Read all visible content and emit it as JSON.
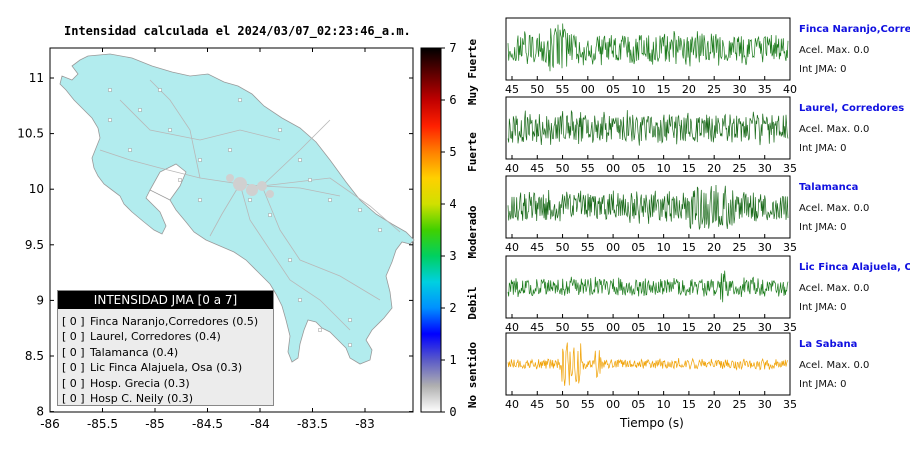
{
  "map": {
    "title": "Intensidad calculada el 2024/03/07_02:23:46_a.m.",
    "x_ticks": [
      "-86",
      "-85.5",
      "-85",
      "-84.5",
      "-84",
      "-83.5",
      "-83"
    ],
    "y_ticks": [
      "11",
      "10.5",
      "10",
      "9.5",
      "9",
      "8.5",
      "8"
    ],
    "land_color": "#b2ecee",
    "road_color": "#b8b8b8",
    "border_color": "#9a9a9a"
  },
  "legend": {
    "header": "INTENSIDAD JMA [0 a 7]",
    "items": [
      {
        "bracket": "[ 0 ]",
        "label": "Finca Naranjo,Corredores (0.5)"
      },
      {
        "bracket": "[ 0 ]",
        "label": "Laurel, Corredores (0.4)"
      },
      {
        "bracket": "[ 0 ]",
        "label": "Talamanca (0.4)"
      },
      {
        "bracket": "[ 0 ]",
        "label": "Lic Finca Alajuela, Osa (0.3)"
      },
      {
        "bracket": "[ 0 ]",
        "label": "Hosp. Grecia (0.3)"
      },
      {
        "bracket": "[ 0 ]",
        "label": "Hosp C. Neily (0.3)"
      }
    ]
  },
  "scale": {
    "tick_labels": [
      "0",
      "1",
      "2",
      "3",
      "4",
      "5",
      "6",
      "7"
    ],
    "categories": [
      "No sentido",
      "Debil",
      "Moderado",
      "Fuerte",
      "Muy Fuerte"
    ],
    "colors": [
      "#ffffff",
      "#b0b0b0",
      "#5a5ac8",
      "#0000ff",
      "#0090ff",
      "#00d0e0",
      "#00d060",
      "#40d000",
      "#d0e000",
      "#ffd000",
      "#ff8000",
      "#ff2000",
      "#c00000",
      "#600000",
      "#000000"
    ]
  },
  "waveforms": {
    "x_axis_label": "Tiempo (s)",
    "stations": [
      {
        "name": "Finca Naranjo,Corredor",
        "acel": "Acel. Max. 0.0",
        "int": "Int JMA: 0",
        "color": "#1a7a1a",
        "ticks": [
          "45",
          "50",
          "55",
          "00",
          "05",
          "10",
          "15",
          "20",
          "25",
          "30",
          "35",
          "40"
        ]
      },
      {
        "name": "Laurel, Corredores",
        "acel": "Acel. Max. 0.0",
        "int": "Int JMA: 0",
        "color": "#1a6a1a",
        "ticks": [
          "40",
          "45",
          "50",
          "55",
          "00",
          "05",
          "10",
          "15",
          "20",
          "25",
          "30",
          "35"
        ]
      },
      {
        "name": "Talamanca",
        "acel": "Acel. Max. 0.0",
        "int": "Int JMA: 0",
        "color": "#1a6a1a",
        "ticks": [
          "40",
          "45",
          "50",
          "55",
          "00",
          "05",
          "10",
          "15",
          "20",
          "25",
          "30",
          "35"
        ]
      },
      {
        "name": "Lic Finca Alajuela, Osa",
        "acel": "Acel. Max. 0.0",
        "int": "Int JMA: 0",
        "color": "#1a7a1a",
        "ticks": [
          "40",
          "45",
          "50",
          "55",
          "00",
          "05",
          "10",
          "15",
          "20",
          "25",
          "30",
          "35"
        ]
      },
      {
        "name": "La Sabana",
        "acel": "Acel. Max. 0.0",
        "int": "Int JMA: 0",
        "color": "#f0a000",
        "ticks": [
          "40",
          "45",
          "50",
          "55",
          "00",
          "05",
          "10",
          "15",
          "20",
          "25",
          "30",
          "35"
        ]
      }
    ]
  }
}
